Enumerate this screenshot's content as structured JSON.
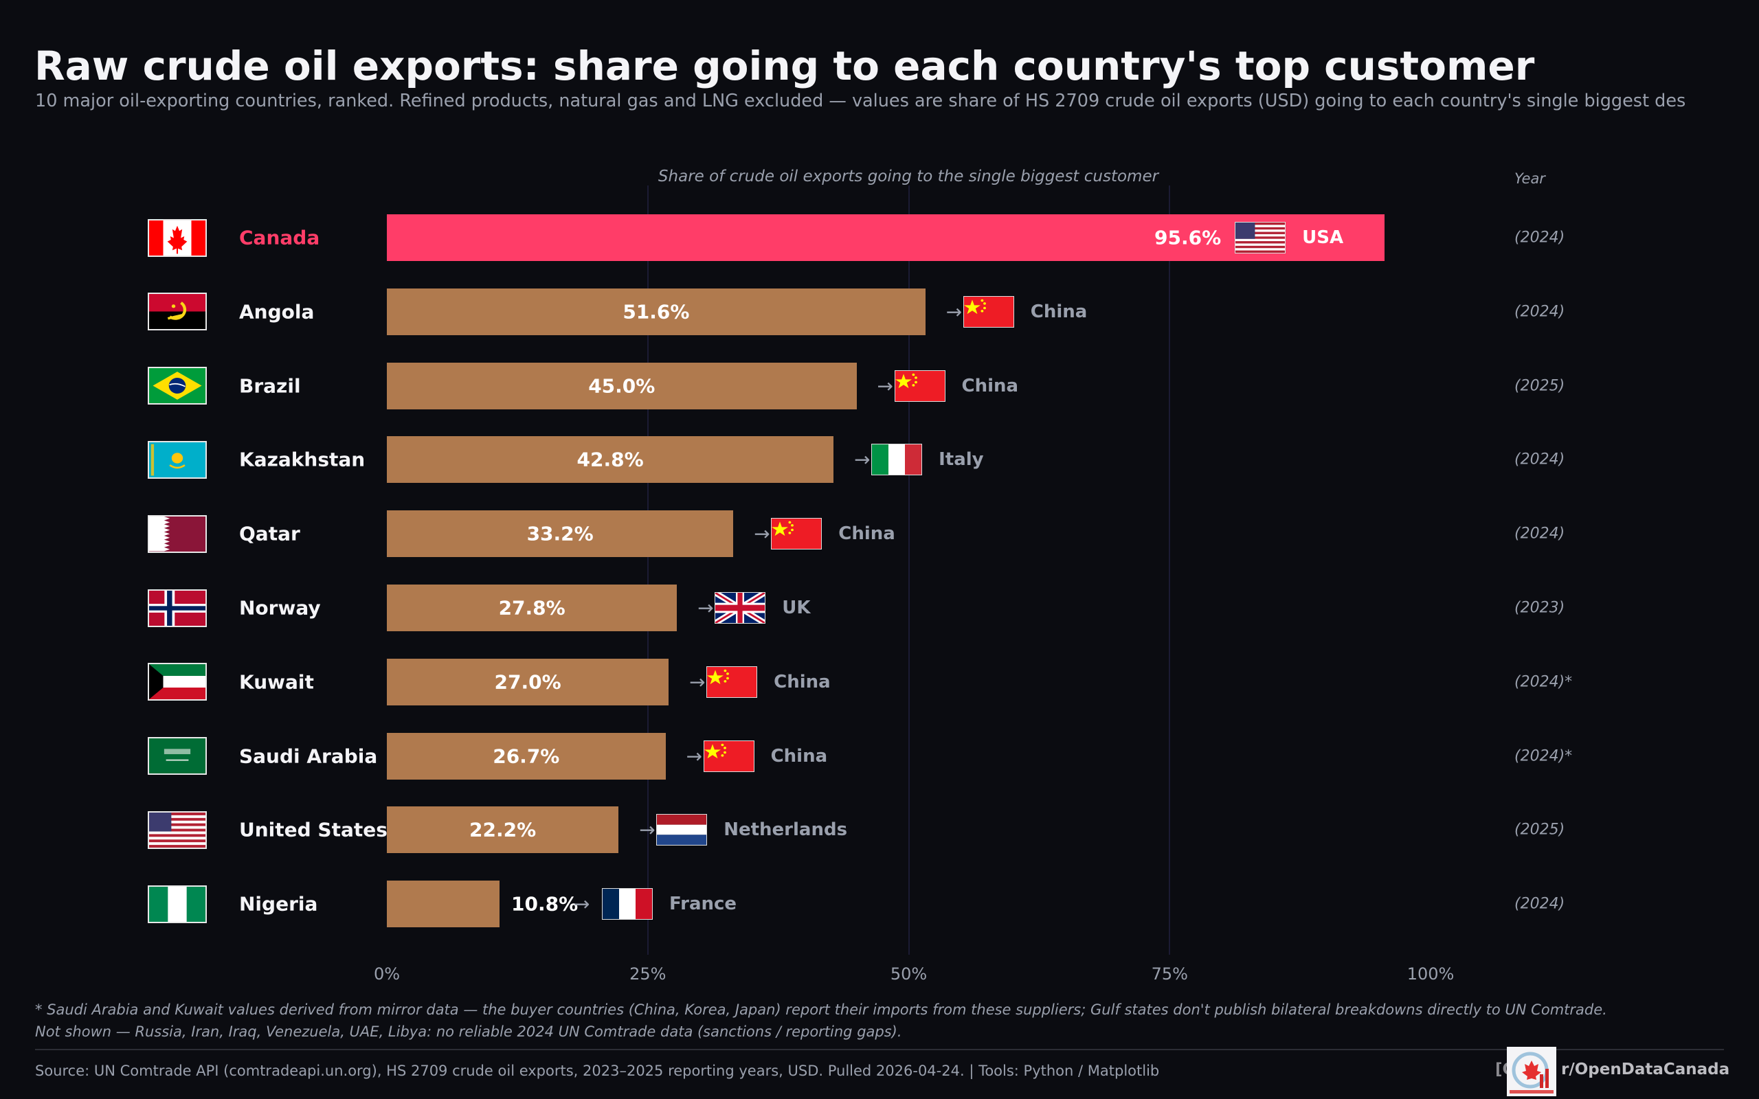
{
  "title": "Raw crude oil exports: share going to each country's top customer",
  "subtitle": "10 major oil-exporting countries, ranked.  Refined products, natural gas and LNG excluded — values are share of HS 2709 crude oil exports (USD) going to each country's single biggest des",
  "colors": {
    "background": "#0b0c11",
    "bar": "#b07a4e",
    "highlight": "#ff3d68",
    "muted_text": "#9aa0ad"
  },
  "chart_data": {
    "type": "bar",
    "orientation": "horizontal",
    "xlabel": "Share of crude oil exports going to the single biggest customer",
    "year_header": "Year",
    "xlim": [
      0,
      100
    ],
    "xticks": [
      "0%",
      "25%",
      "50%",
      "75%",
      "100%"
    ],
    "grid": "vertical",
    "highlight_category": "Canada",
    "rows": [
      {
        "country": "Canada",
        "flag": "canada-flag",
        "value": 95.6,
        "label": "95.6%",
        "customer": "USA",
        "customer_flag": "usa-flag",
        "year": "(2024)"
      },
      {
        "country": "Angola",
        "flag": "angola-flag",
        "value": 51.6,
        "label": "51.6%",
        "customer": "China",
        "customer_flag": "china-flag",
        "year": "(2024)"
      },
      {
        "country": "Brazil",
        "flag": "brazil-flag",
        "value": 45.0,
        "label": "45.0%",
        "customer": "China",
        "customer_flag": "china-flag",
        "year": "(2025)"
      },
      {
        "country": "Kazakhstan",
        "flag": "kazakhstan-flag",
        "value": 42.8,
        "label": "42.8%",
        "customer": "Italy",
        "customer_flag": "italy-flag",
        "year": "(2024)"
      },
      {
        "country": "Qatar",
        "flag": "qatar-flag",
        "value": 33.2,
        "label": "33.2%",
        "customer": "China",
        "customer_flag": "china-flag",
        "year": "(2024)"
      },
      {
        "country": "Norway",
        "flag": "norway-flag",
        "value": 27.8,
        "label": "27.8%",
        "customer": "UK",
        "customer_flag": "uk-flag",
        "year": "(2023)"
      },
      {
        "country": "Kuwait",
        "flag": "kuwait-flag",
        "value": 27.0,
        "label": "27.0%",
        "customer": "China",
        "customer_flag": "china-flag",
        "year": "(2024)*"
      },
      {
        "country": "Saudi Arabia",
        "flag": "saudi-flag",
        "value": 26.7,
        "label": "26.7%",
        "customer": "China",
        "customer_flag": "china-flag",
        "year": "(2024)*"
      },
      {
        "country": "United States",
        "flag": "usa-flag",
        "value": 22.2,
        "label": "22.2%",
        "customer": "Netherlands",
        "customer_flag": "netherlands-flag",
        "year": "(2025)"
      },
      {
        "country": "Nigeria",
        "flag": "nigeria-flag",
        "value": 10.8,
        "label": "10.8%",
        "customer": "France",
        "customer_flag": "france-flag",
        "year": "(2024)"
      }
    ],
    "arrow": "→"
  },
  "footnotes": [
    "* Saudi Arabia and Kuwait values derived from mirror data — the buyer countries (China, Korea, Japan) report their imports from these suppliers; Gulf states don't publish bilateral breakdowns directly to UN Comtrade.",
    "Not shown — Russia, Iran, Iraq, Venezuela, UAE, Libya: no reliable 2024 UN Comtrade data (sanctions / reporting gaps)."
  ],
  "source": "Source: UN Comtrade API (comtradeapi.un.org), HS 2709 crude oil exports, 2023–2025 reporting years, USD.  Pulled 2026-04-24.  |  Tools: Python / Matplotlib",
  "brand": {
    "prefix": "[OD]",
    "name": "r/OpenDataCanada",
    "logo": "open-data-canada-logo"
  }
}
